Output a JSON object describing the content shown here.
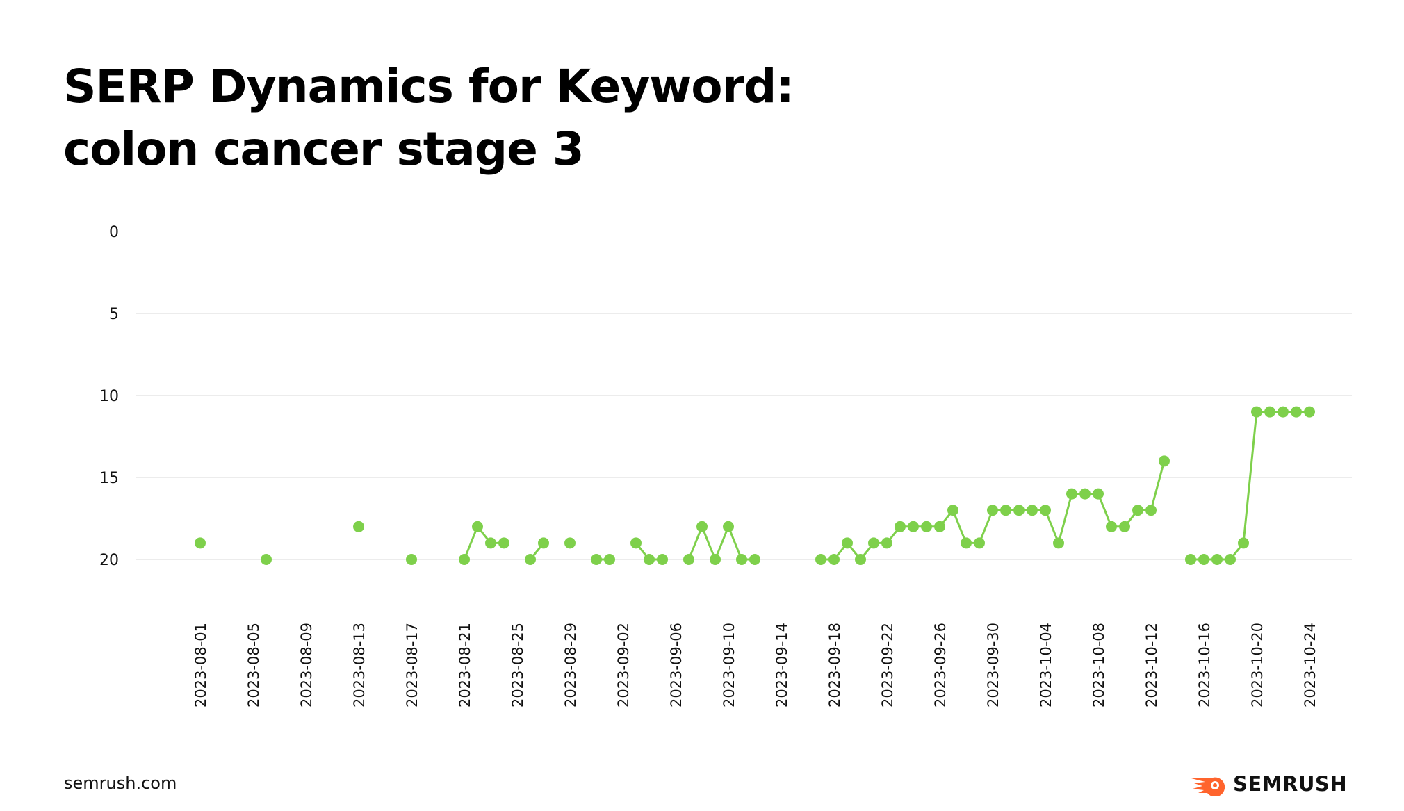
{
  "page": {
    "title_line1": "SERP Dynamics for Keyword:",
    "title_line2": "colon cancer stage 3",
    "footer_site": "semrush.com",
    "brand_name": "SEMRUSH",
    "brand_icon": "semrush-fire-logo-icon",
    "brand_color": "#FF642D"
  },
  "chart_data": {
    "type": "line",
    "title": "SERP Dynamics for Keyword: colon cancer stage 3",
    "xlabel": "",
    "ylabel": "",
    "y_inverted": true,
    "ylim": [
      0,
      20
    ],
    "yticks": [
      0,
      5,
      10,
      15,
      20
    ],
    "grid": true,
    "color": "#7ED04B",
    "x_tick_labels": [
      "2023-08-01",
      "2023-08-05",
      "2023-08-09",
      "2023-08-13",
      "2023-08-17",
      "2023-08-21",
      "2023-08-25",
      "2023-08-29",
      "2023-09-02",
      "2023-09-06",
      "2023-09-10",
      "2023-09-14",
      "2023-09-18",
      "2023-09-22",
      "2023-09-26",
      "2023-09-30",
      "2023-10-04",
      "2023-10-08",
      "2023-10-12",
      "2023-10-16",
      "2023-10-20",
      "2023-10-24"
    ],
    "series": [
      {
        "points": [
          [
            "2023-08-01",
            19
          ],
          [
            "2023-08-06",
            20
          ],
          [
            "2023-08-13",
            18
          ],
          [
            "2023-08-17",
            20
          ],
          [
            "2023-08-21",
            20
          ],
          [
            "2023-08-22",
            18
          ],
          [
            "2023-08-23",
            19
          ],
          [
            "2023-08-24",
            19
          ],
          [
            "2023-08-26",
            20
          ],
          [
            "2023-08-27",
            19
          ],
          [
            "2023-08-29",
            19
          ],
          [
            "2023-08-31",
            20
          ],
          [
            "2023-09-01",
            20
          ],
          [
            "2023-09-03",
            19
          ],
          [
            "2023-09-04",
            20
          ],
          [
            "2023-09-05",
            20
          ],
          [
            "2023-09-07",
            20
          ],
          [
            "2023-09-08",
            18
          ],
          [
            "2023-09-09",
            20
          ],
          [
            "2023-09-10",
            18
          ],
          [
            "2023-09-11",
            20
          ],
          [
            "2023-09-12",
            20
          ],
          [
            "2023-09-17",
            20
          ],
          [
            "2023-09-18",
            20
          ],
          [
            "2023-09-19",
            19
          ],
          [
            "2023-09-20",
            20
          ],
          [
            "2023-09-21",
            19
          ],
          [
            "2023-09-22",
            19
          ],
          [
            "2023-09-23",
            18
          ],
          [
            "2023-09-24",
            18
          ],
          [
            "2023-09-25",
            18
          ],
          [
            "2023-09-26",
            18
          ],
          [
            "2023-09-27",
            17
          ],
          [
            "2023-09-28",
            19
          ],
          [
            "2023-09-29",
            19
          ],
          [
            "2023-09-30",
            17
          ],
          [
            "2023-10-01",
            17
          ],
          [
            "2023-10-02",
            17
          ],
          [
            "2023-10-03",
            17
          ],
          [
            "2023-10-04",
            17
          ],
          [
            "2023-10-05",
            19
          ],
          [
            "2023-10-06",
            16
          ],
          [
            "2023-10-07",
            16
          ],
          [
            "2023-10-08",
            16
          ],
          [
            "2023-10-09",
            18
          ],
          [
            "2023-10-10",
            18
          ],
          [
            "2023-10-11",
            17
          ],
          [
            "2023-10-12",
            17
          ],
          [
            "2023-10-13",
            14
          ],
          [
            "2023-10-15",
            20
          ],
          [
            "2023-10-16",
            20
          ],
          [
            "2023-10-17",
            20
          ],
          [
            "2023-10-18",
            20
          ],
          [
            "2023-10-19",
            19
          ],
          [
            "2023-10-20",
            11
          ],
          [
            "2023-10-21",
            11
          ],
          [
            "2023-10-22",
            11
          ],
          [
            "2023-10-23",
            11
          ],
          [
            "2023-10-24",
            11
          ]
        ]
      }
    ]
  }
}
